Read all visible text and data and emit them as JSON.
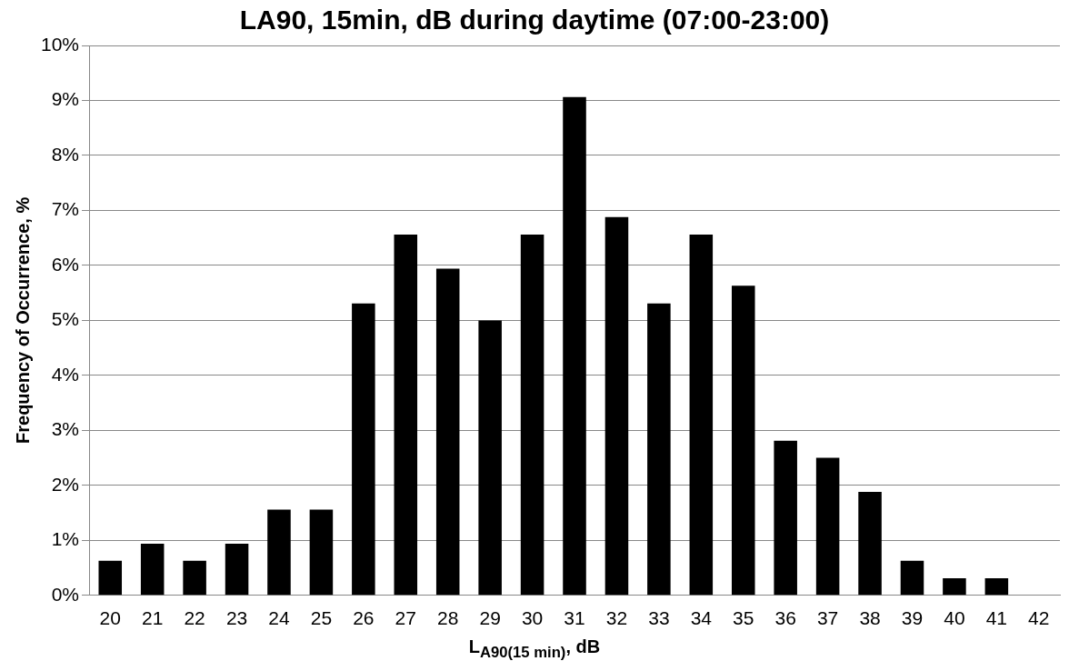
{
  "chart_data": {
    "type": "bar",
    "title": "LA90, 15min, dB during daytime (07:00-23:00)",
    "xlabel": "L$_{A90(15 min)}$, dB",
    "ylabel": "Frequency of Occurrence, %",
    "categories": [
      "20",
      "21",
      "22",
      "23",
      "24",
      "25",
      "26",
      "27",
      "28",
      "29",
      "30",
      "31",
      "32",
      "33",
      "34",
      "35",
      "36",
      "37",
      "38",
      "39",
      "40",
      "41",
      "42"
    ],
    "values": [
      0.63,
      0.94,
      0.63,
      0.94,
      1.56,
      1.56,
      5.31,
      6.56,
      5.94,
      5.0,
      6.56,
      9.06,
      6.88,
      5.31,
      6.56,
      5.63,
      2.81,
      2.5,
      1.88,
      0.63,
      0.31,
      0.31,
      0
    ],
    "color": "#000000",
    "ylim": [
      0,
      10
    ],
    "yticks": [
      {
        "value": 0,
        "label": "0%"
      },
      {
        "value": 1,
        "label": "1%"
      },
      {
        "value": 2,
        "label": "2%"
      },
      {
        "value": 3,
        "label": "3%"
      },
      {
        "value": 4,
        "label": "4%"
      },
      {
        "value": 5,
        "label": "5%"
      },
      {
        "value": 6,
        "label": "6%"
      },
      {
        "value": 7,
        "label": "7%"
      },
      {
        "value": 8,
        "label": "8%"
      },
      {
        "value": 9,
        "label": "9%"
      },
      {
        "value": 10,
        "label": "10%"
      }
    ],
    "grid": "y",
    "legend": false
  }
}
